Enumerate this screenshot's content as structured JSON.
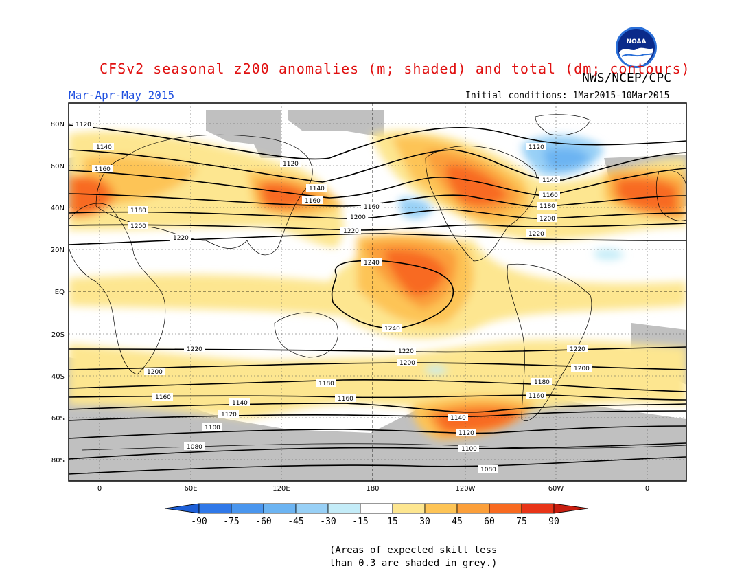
{
  "header": {
    "title": "CFSv2 seasonal z200 anomalies (m; shaded) and total (dm; contours)",
    "agency": "NWS/NCEP/CPC",
    "period": "Mar-Apr-May 2015",
    "initial_conditions": "Initial conditions: 1Mar2015-10Mar2015",
    "logo_text": "NOAA"
  },
  "axes": {
    "lon_ticks": [
      "0",
      "60E",
      "120E",
      "180",
      "120W",
      "60W",
      "0"
    ],
    "lat_ticks": [
      "80N",
      "60N",
      "40N",
      "20N",
      "EQ",
      "20S",
      "40S",
      "60S",
      "80S"
    ]
  },
  "contours": [
    {
      "label": "1120"
    },
    {
      "label": "1140"
    },
    {
      "label": "1160"
    },
    {
      "label": "1180"
    },
    {
      "label": "1200"
    },
    {
      "label": "1220"
    },
    {
      "label": "1240"
    },
    {
      "label": "1100"
    },
    {
      "label": "1080"
    }
  ],
  "colorbar": {
    "labels": [
      "-90",
      "-75",
      "-60",
      "-45",
      "-30",
      "-15",
      "15",
      "30",
      "45",
      "60",
      "75",
      "90"
    ],
    "colors": [
      "#1e60d8",
      "#2f78e8",
      "#4a96ee",
      "#6cb4f2",
      "#98d0f6",
      "#c4ecf8",
      "#ffffff",
      "#fde690",
      "#fdc456",
      "#fb9f3a",
      "#f86a20",
      "#e83418",
      "#c81e10"
    ]
  },
  "skill_note": [
    "(Areas of expected skill less",
    "than 0.3 are shaded in grey.)"
  ]
}
